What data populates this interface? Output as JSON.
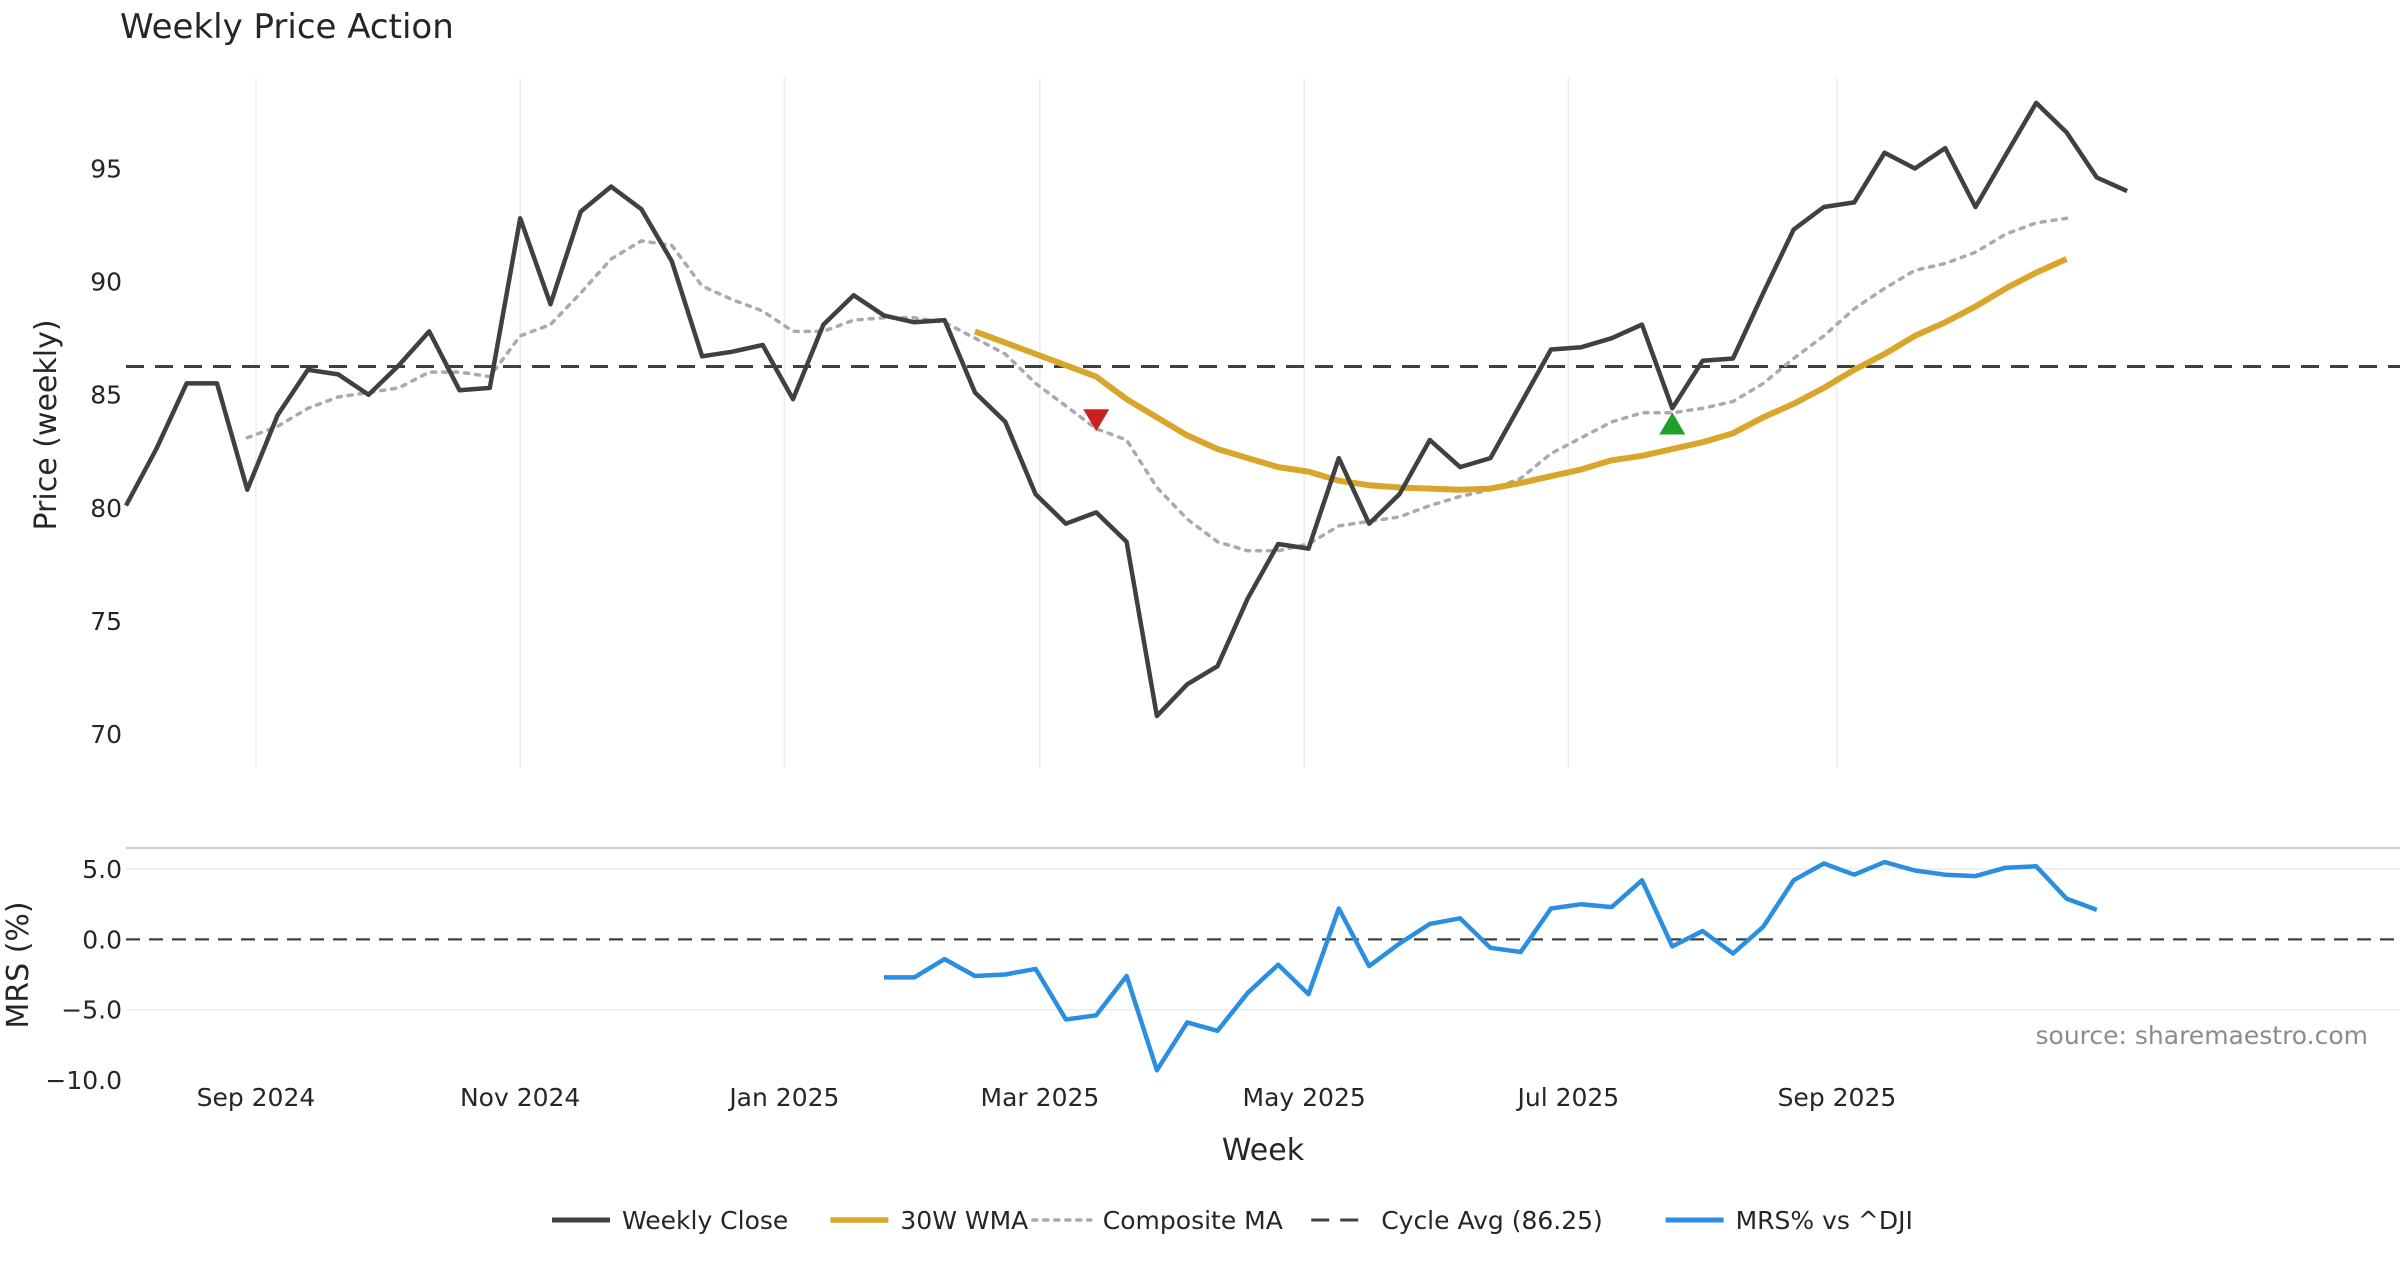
{
  "chart_data": {
    "type": "line",
    "title": "Weekly Price Action",
    "price_panel": {
      "ylabel": "Price (weekly)",
      "ylim": [
        68.5,
        99
      ],
      "yticks": [
        70,
        75,
        80,
        85,
        90,
        95
      ],
      "grid": true
    },
    "mrs_panel": {
      "ylabel": "MRS (%)",
      "ylim": [
        -10,
        6.5
      ],
      "yticks": [
        5.0,
        0.0,
        -5.0,
        -10.0
      ],
      "ytick_labels": [
        "5.0",
        "0.0",
        "−5.0",
        "−10.0"
      ],
      "zero_line": 0
    },
    "xlabel": "Week",
    "x_range": [
      "2024-08-02",
      "2026-01-09"
    ],
    "x_ticks": [
      {
        "date": "2024-09-01",
        "label": "Sep 2024"
      },
      {
        "date": "2024-11-01",
        "label": "Nov 2024"
      },
      {
        "date": "2025-01-01",
        "label": "Jan 2025"
      },
      {
        "date": "2025-03-01",
        "label": "Mar 2025"
      },
      {
        "date": "2025-05-01",
        "label": "May 2025"
      },
      {
        "date": "2025-07-01",
        "label": "Jul 2025"
      },
      {
        "date": "2025-09-01",
        "label": "Sep 2025"
      }
    ],
    "x": [
      "2024-08-02",
      "2024-08-09",
      "2024-08-16",
      "2024-08-23",
      "2024-08-30",
      "2024-09-06",
      "2024-09-13",
      "2024-09-20",
      "2024-09-27",
      "2024-10-04",
      "2024-10-11",
      "2024-10-18",
      "2024-10-25",
      "2024-11-01",
      "2024-11-08",
      "2024-11-15",
      "2024-11-22",
      "2024-11-29",
      "2024-12-06",
      "2024-12-13",
      "2024-12-20",
      "2024-12-27",
      "2025-01-03",
      "2025-01-10",
      "2025-01-17",
      "2025-01-24",
      "2025-01-31",
      "2025-02-07",
      "2025-02-14",
      "2025-02-21",
      "2025-02-28",
      "2025-03-07",
      "2025-03-14",
      "2025-03-21",
      "2025-03-28",
      "2025-04-04",
      "2025-04-11",
      "2025-04-18",
      "2025-04-25",
      "2025-05-02",
      "2025-05-09",
      "2025-05-16",
      "2025-05-23",
      "2025-05-30",
      "2025-06-06",
      "2025-06-13",
      "2025-06-20",
      "2025-06-27",
      "2025-07-04",
      "2025-07-11",
      "2025-07-18",
      "2025-07-25",
      "2025-08-01",
      "2025-08-08",
      "2025-08-15",
      "2025-08-22",
      "2025-08-29",
      "2025-09-05",
      "2025-09-12",
      "2025-09-19",
      "2025-09-26",
      "2025-10-03",
      "2025-10-10",
      "2025-10-17",
      "2025-10-24",
      "2025-10-31",
      "2025-11-07",
      "2025-11-14",
      "2025-11-21",
      "2025-11-28",
      "2025-12-05",
      "2025-12-12",
      "2025-12-19",
      "2025-12-26",
      "2026-01-02"
    ],
    "series": [
      {
        "name": "Weekly Close",
        "color": "#404040",
        "style": "solid",
        "panel": "price",
        "values": [
          80.1,
          82.6,
          85.5,
          85.5,
          80.8,
          84.1,
          86.1,
          85.9,
          85.0,
          86.3,
          87.8,
          85.2,
          85.3,
          92.8,
          89.0,
          93.1,
          94.2,
          93.2,
          90.9,
          86.7,
          86.9,
          87.2,
          84.8,
          88.1,
          89.4,
          88.5,
          88.2,
          88.3,
          85.1,
          83.8,
          80.6,
          79.3,
          79.8,
          78.5,
          70.8,
          72.2,
          73.0,
          76.0,
          78.4,
          78.2,
          82.2,
          79.3,
          80.6,
          83.0,
          81.8,
          82.2,
          84.6,
          87.0,
          87.1,
          87.5,
          88.1,
          84.4,
          86.5,
          86.6,
          89.5,
          92.3,
          93.3,
          93.5,
          95.7,
          95.0,
          95.9,
          93.3,
          95.6,
          97.9,
          96.6,
          94.6,
          94.0,
          null,
          null,
          null,
          null,
          null,
          null,
          null,
          null
        ]
      },
      {
        "name": "30W WMA",
        "color": "#d9a52a",
        "style": "solid",
        "panel": "price",
        "values": [
          null,
          null,
          null,
          null,
          null,
          null,
          null,
          null,
          null,
          null,
          null,
          null,
          null,
          null,
          null,
          null,
          null,
          null,
          null,
          null,
          null,
          null,
          null,
          null,
          null,
          null,
          null,
          null,
          87.8,
          87.3,
          86.8,
          86.3,
          85.8,
          84.8,
          84.0,
          83.2,
          82.6,
          82.2,
          81.8,
          81.6,
          81.2,
          81.0,
          80.9,
          80.85,
          80.8,
          80.85,
          81.1,
          81.4,
          81.7,
          82.1,
          82.3,
          82.6,
          82.9,
          83.3,
          84.0,
          84.6,
          85.3,
          86.1,
          86.8,
          87.6,
          88.2,
          88.9,
          89.7,
          90.4,
          91.0,
          null,
          null,
          null,
          null,
          null,
          null,
          null,
          null,
          null,
          null
        ]
      },
      {
        "name": "Composite MA",
        "color": "#aaaaaa",
        "style": "dotted",
        "panel": "price",
        "values": [
          null,
          null,
          null,
          null,
          83.1,
          83.6,
          84.4,
          84.9,
          85.1,
          85.3,
          86.0,
          86.0,
          85.8,
          87.6,
          88.1,
          89.5,
          91.0,
          91.8,
          91.6,
          89.8,
          89.2,
          88.7,
          87.8,
          87.8,
          88.3,
          88.4,
          88.4,
          88.2,
          87.5,
          86.8,
          85.5,
          84.5,
          83.5,
          83.0,
          80.9,
          79.5,
          78.5,
          78.1,
          78.1,
          78.4,
          79.2,
          79.4,
          79.6,
          80.1,
          80.5,
          80.8,
          81.3,
          82.4,
          83.1,
          83.8,
          84.2,
          84.2,
          84.4,
          84.7,
          85.5,
          86.6,
          87.6,
          88.8,
          89.7,
          90.5,
          90.8,
          91.3,
          92.1,
          92.6,
          92.8,
          null,
          null,
          null,
          null,
          null,
          null,
          null,
          null,
          null,
          null
        ]
      },
      {
        "name": "Cycle Avg (86.25)",
        "color": "#404040",
        "style": "dashed",
        "panel": "price",
        "constant": 86.25
      },
      {
        "name": "MRS% vs ^DJI",
        "color": "#2a8fe0",
        "style": "solid",
        "panel": "mrs",
        "values": [
          null,
          null,
          null,
          null,
          null,
          null,
          null,
          null,
          null,
          null,
          null,
          null,
          null,
          null,
          null,
          null,
          null,
          null,
          null,
          null,
          null,
          null,
          null,
          null,
          null,
          -2.7,
          -2.7,
          -1.4,
          -2.6,
          -2.5,
          -2.1,
          -5.7,
          -5.4,
          -2.6,
          -9.3,
          -5.9,
          -6.5,
          -3.8,
          -1.8,
          -3.9,
          2.2,
          -1.9,
          -0.3,
          1.1,
          1.5,
          -0.6,
          -0.9,
          2.2,
          2.5,
          2.3,
          4.2,
          -0.5,
          0.6,
          -1.0,
          0.9,
          4.2,
          5.4,
          4.6,
          5.5,
          4.9,
          4.6,
          4.5,
          5.1,
          5.2,
          2.9,
          2.1,
          null,
          null,
          null,
          null,
          null,
          null,
          null,
          null,
          null
        ]
      }
    ],
    "markers": [
      {
        "type": "sell",
        "shape": "triangle-down",
        "color": "#cc1f1f",
        "date": "2025-03-14",
        "value": 83.9
      },
      {
        "type": "buy",
        "shape": "triangle-up",
        "color": "#1fa02a",
        "date": "2025-07-25",
        "value": 83.7
      }
    ],
    "legend": {
      "position": "bottom-center",
      "entries": [
        "Weekly Close",
        "30W WMA",
        "Composite MA",
        "Cycle Avg (86.25)",
        "MRS% vs ^DJI"
      ]
    },
    "annotation": {
      "text": "source: sharemaestro.com",
      "position": "bottom-right of MRS panel"
    }
  }
}
